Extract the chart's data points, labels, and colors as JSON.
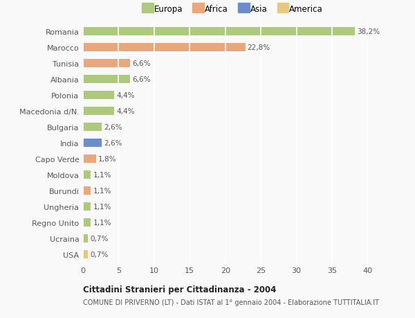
{
  "categories": [
    "Romania",
    "Marocco",
    "Tunisia",
    "Albania",
    "Polonia",
    "Macedonia d/N.",
    "Bulgaria",
    "India",
    "Capo Verde",
    "Moldova",
    "Burundi",
    "Ungheria",
    "Regno Unito",
    "Ucraina",
    "USA"
  ],
  "values": [
    38.2,
    22.8,
    6.6,
    6.6,
    4.4,
    4.4,
    2.6,
    2.6,
    1.8,
    1.1,
    1.1,
    1.1,
    1.1,
    0.7,
    0.7
  ],
  "labels": [
    "38,2%",
    "22,8%",
    "6,6%",
    "6,6%",
    "4,4%",
    "4,4%",
    "2,6%",
    "2,6%",
    "1,8%",
    "1,1%",
    "1,1%",
    "1,1%",
    "1,1%",
    "0,7%",
    "0,7%"
  ],
  "colors": [
    "#adc97e",
    "#e8a87c",
    "#e8a87c",
    "#adc97e",
    "#adc97e",
    "#adc97e",
    "#adc97e",
    "#6a8fc8",
    "#e8a87c",
    "#adc97e",
    "#e8a87c",
    "#adc97e",
    "#adc97e",
    "#adc97e",
    "#e8c87a"
  ],
  "legend_labels": [
    "Europa",
    "Africa",
    "Asia",
    "America"
  ],
  "legend_colors": [
    "#adc97e",
    "#e8a87c",
    "#6a8fc8",
    "#e8c87a"
  ],
  "title1": "Cittadini Stranieri per Cittadinanza - 2004",
  "title2": "COMUNE DI PRIVERNO (LT) - Dati ISTAT al 1° gennaio 2004 - Elaborazione TUTTITALIA.IT",
  "xlim": [
    0,
    42
  ],
  "background_color": "#f9f9f9",
  "grid_color": "#ffffff",
  "bar_height": 0.55
}
